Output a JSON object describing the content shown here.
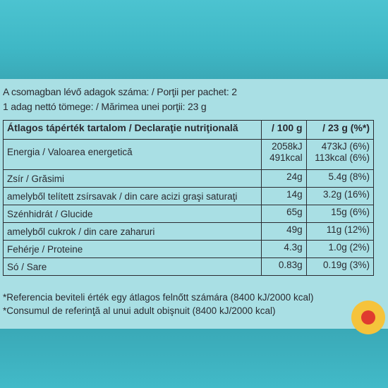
{
  "header": {
    "portions_line": "A csomagban lévő adagok száma: / Porţii per pachet: 2",
    "net_weight_line": "1 adag nettó tömege: / Mărimea unei porţii: 23 g"
  },
  "table": {
    "header": {
      "name": "Átlagos tápérték tartalom / Declaraţie nutriţională",
      "per100": "/ 100 g",
      "perPortion": "/ 23 g (%*)"
    },
    "energy": {
      "name": "Energia / Valoarea energetică",
      "per100_kj": "2058kJ",
      "per100_kcal": "491kcal",
      "portion_kj": "473kJ (6%)",
      "portion_kcal": "113kcal (6%)"
    },
    "rows": [
      {
        "name": "Zsír / Grăsimi",
        "per100": "24g",
        "portion": "5.4g (8%)"
      },
      {
        "name": "amelyből telített zsírsavak / din care acizi graşi saturaţi",
        "per100": "14g",
        "portion": "3.2g (16%)"
      },
      {
        "name": "Szénhidrát / Glucide",
        "per100": "65g",
        "portion": "15g (6%)"
      },
      {
        "name": "amelyből cukrok / din care zaharuri",
        "per100": "49g",
        "portion": "11g (12%)"
      },
      {
        "name": "Fehérje / Proteine",
        "per100": "4.3g",
        "portion": "1.0g (2%)"
      },
      {
        "name": "Só / Sare",
        "per100": "0.83g",
        "portion": "0.19g (3%)"
      }
    ]
  },
  "footnotes": {
    "hu": "*Referencia beviteli érték egy átlagos felnőtt számára (8400 kJ/2000 kcal)",
    "ro": "*Consumul de referinţă al unui adult obişnuit (8400 kJ/2000 kcal)"
  },
  "colors": {
    "background": "#3fb8c6",
    "panel": "#a9dfe4",
    "text": "#2a2a30"
  }
}
